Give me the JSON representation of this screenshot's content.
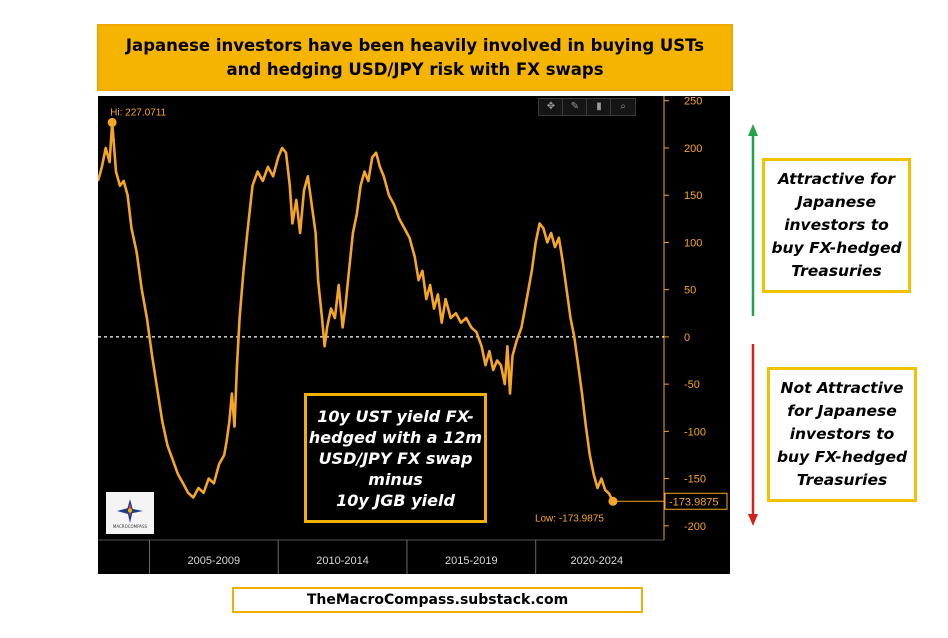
{
  "title": {
    "line1": "Japanese investors have been heavily involved in buying USTs",
    "line2": "and hedging USD/JPY risk with FX swaps"
  },
  "toolbar": {
    "icons": [
      "move-icon",
      "draw-icon",
      "bookmark-icon",
      "zoom-icon"
    ]
  },
  "chart_data": {
    "type": "line",
    "y_ticks": [
      250,
      200,
      150,
      100,
      50,
      0,
      -50,
      -100,
      -150,
      -200
    ],
    "ylim": [
      -215,
      255
    ],
    "x_range": [
      2003.0,
      2024.75
    ],
    "x_period_labels": [
      "2005-2009",
      "2010-2014",
      "2015-2019",
      "2020-2024"
    ],
    "x_period_bounds": [
      2003.0,
      2005.0,
      2010.0,
      2015.0,
      2020.0,
      2024.75
    ],
    "zero_line": true,
    "grid": false,
    "series": [
      {
        "color": "#f5a623",
        "points": [
          [
            2003.0,
            165
          ],
          [
            2003.15,
            180
          ],
          [
            2003.3,
            200
          ],
          [
            2003.45,
            185
          ],
          [
            2003.55,
            227.07
          ],
          [
            2003.7,
            175
          ],
          [
            2003.85,
            160
          ],
          [
            2004.0,
            165
          ],
          [
            2004.15,
            150
          ],
          [
            2004.3,
            115
          ],
          [
            2004.5,
            90
          ],
          [
            2004.7,
            50
          ],
          [
            2004.9,
            20
          ],
          [
            2005.1,
            -20
          ],
          [
            2005.3,
            -55
          ],
          [
            2005.5,
            -90
          ],
          [
            2005.7,
            -115
          ],
          [
            2005.9,
            -130
          ],
          [
            2006.1,
            -145
          ],
          [
            2006.3,
            -155
          ],
          [
            2006.5,
            -165
          ],
          [
            2006.7,
            -170
          ],
          [
            2006.9,
            -160
          ],
          [
            2007.1,
            -165
          ],
          [
            2007.3,
            -150
          ],
          [
            2007.5,
            -155
          ],
          [
            2007.7,
            -135
          ],
          [
            2007.9,
            -125
          ],
          [
            2008.0,
            -110
          ],
          [
            2008.1,
            -90
          ],
          [
            2008.2,
            -60
          ],
          [
            2008.3,
            -95
          ],
          [
            2008.4,
            -30
          ],
          [
            2008.5,
            20
          ],
          [
            2008.65,
            70
          ],
          [
            2008.8,
            110
          ],
          [
            2009.0,
            160
          ],
          [
            2009.2,
            175
          ],
          [
            2009.4,
            165
          ],
          [
            2009.6,
            180
          ],
          [
            2009.8,
            170
          ],
          [
            2010.0,
            190
          ],
          [
            2010.15,
            200
          ],
          [
            2010.3,
            195
          ],
          [
            2010.45,
            160
          ],
          [
            2010.55,
            120
          ],
          [
            2010.7,
            145
          ],
          [
            2010.85,
            110
          ],
          [
            2011.0,
            155
          ],
          [
            2011.15,
            170
          ],
          [
            2011.3,
            140
          ],
          [
            2011.45,
            110
          ],
          [
            2011.55,
            60
          ],
          [
            2011.7,
            20
          ],
          [
            2011.8,
            -10
          ],
          [
            2011.9,
            10
          ],
          [
            2012.05,
            30
          ],
          [
            2012.2,
            20
          ],
          [
            2012.35,
            55
          ],
          [
            2012.5,
            10
          ],
          [
            2012.6,
            30
          ],
          [
            2012.75,
            70
          ],
          [
            2012.9,
            110
          ],
          [
            2013.05,
            130
          ],
          [
            2013.2,
            160
          ],
          [
            2013.35,
            175
          ],
          [
            2013.5,
            165
          ],
          [
            2013.65,
            190
          ],
          [
            2013.8,
            195
          ],
          [
            2013.95,
            180
          ],
          [
            2014.1,
            170
          ],
          [
            2014.3,
            150
          ],
          [
            2014.5,
            140
          ],
          [
            2014.7,
            125
          ],
          [
            2014.9,
            115
          ],
          [
            2015.1,
            105
          ],
          [
            2015.3,
            85
          ],
          [
            2015.45,
            60
          ],
          [
            2015.6,
            70
          ],
          [
            2015.75,
            40
          ],
          [
            2015.9,
            55
          ],
          [
            2016.05,
            30
          ],
          [
            2016.2,
            45
          ],
          [
            2016.35,
            15
          ],
          [
            2016.5,
            40
          ],
          [
            2016.7,
            20
          ],
          [
            2016.9,
            25
          ],
          [
            2017.1,
            15
          ],
          [
            2017.3,
            20
          ],
          [
            2017.5,
            10
          ],
          [
            2017.7,
            5
          ],
          [
            2017.9,
            -10
          ],
          [
            2018.05,
            -30
          ],
          [
            2018.2,
            -15
          ],
          [
            2018.35,
            -35
          ],
          [
            2018.5,
            -25
          ],
          [
            2018.65,
            -30
          ],
          [
            2018.8,
            -50
          ],
          [
            2018.9,
            -10
          ],
          [
            2019.0,
            -60
          ],
          [
            2019.1,
            -20
          ],
          [
            2019.25,
            -5
          ],
          [
            2019.45,
            10
          ],
          [
            2019.65,
            40
          ],
          [
            2019.85,
            70
          ],
          [
            2020.0,
            100
          ],
          [
            2020.15,
            120
          ],
          [
            2020.3,
            115
          ],
          [
            2020.45,
            100
          ],
          [
            2020.6,
            110
          ],
          [
            2020.75,
            95
          ],
          [
            2020.9,
            105
          ],
          [
            2021.05,
            80
          ],
          [
            2021.2,
            50
          ],
          [
            2021.35,
            20
          ],
          [
            2021.5,
            0
          ],
          [
            2021.65,
            -30
          ],
          [
            2021.8,
            -60
          ],
          [
            2021.95,
            -95
          ],
          [
            2022.1,
            -125
          ],
          [
            2022.25,
            -145
          ],
          [
            2022.4,
            -160
          ],
          [
            2022.55,
            -150
          ],
          [
            2022.7,
            -162
          ],
          [
            2022.85,
            -166
          ],
          [
            2023.0,
            -173.99
          ]
        ]
      }
    ],
    "hi_label": "Hi: 227.0711",
    "low_label": "Low: -173.9875",
    "last_value_label": "-173.9875"
  },
  "inset_note": {
    "lines": [
      "10y UST yield FX-",
      "hedged with a 12m",
      "USD/JPY FX swap",
      "minus",
      "10y JGB yield"
    ]
  },
  "logo": {
    "text": "MACROCOMPASS"
  },
  "annotations": {
    "attractive": [
      "Attractive for",
      "Japanese",
      "investors to",
      "buy FX-hedged",
      "Treasuries"
    ],
    "not_attractive": [
      "Not Attractive",
      "for Japanese",
      "investors to",
      "buy FX-hedged",
      "Treasuries"
    ]
  },
  "colors": {
    "line": "#f5a623",
    "title_bg": "#f5b400",
    "arrow_up": "#22a34a",
    "arrow_down": "#d62020"
  },
  "footer": {
    "text": "TheMacroCompass.substack.com"
  }
}
